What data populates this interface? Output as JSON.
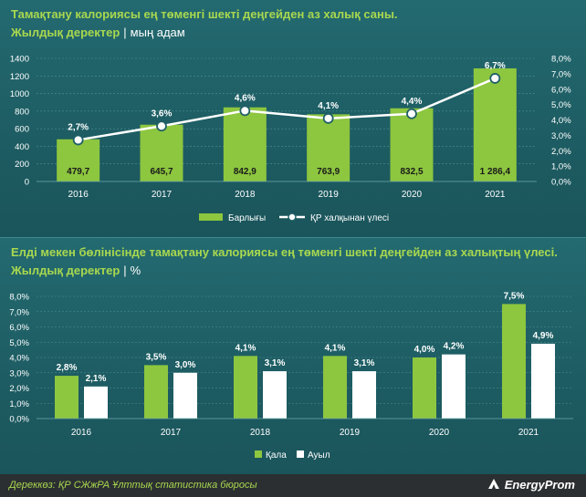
{
  "chart1": {
    "title": "Тамақтану калориясы ең төменгі шекті деңгейден аз халық саны.",
    "subtitle": "Жылдық деректер",
    "unit": "мың адам"
  },
  "chart2": {
    "title": "Елді мекен бөлінісінде тамақтану калориясы ең төменгі шекті деңгейден аз халықтың үлесі.",
    "subtitle": "Жылдық деректер",
    "unit": "%"
  },
  "footer": {
    "source": "Дереккөз: ҚР СЖжРА Ұлттық статистика бюросы",
    "logo": "EnergyProm"
  },
  "colors": {
    "green": "#8dc63f",
    "white": "#ffffff",
    "line": "#ffffff",
    "bg": "#1f5f66"
  },
  "chart_data": [
    {
      "type": "bar",
      "categories": [
        "2016",
        "2017",
        "2018",
        "2019",
        "2020",
        "2021"
      ],
      "series": [
        {
          "name": "Барлығы",
          "values": [
            479.7,
            645.7,
            842.9,
            763.9,
            832.5,
            1286.4
          ],
          "labels": [
            "479,7",
            "645,7",
            "842,9",
            "763,9",
            "832,5",
            "1 286,4"
          ]
        },
        {
          "name": "ҚР халқынан үлесі",
          "type": "line",
          "axis": "right",
          "values": [
            2.7,
            3.6,
            4.6,
            4.1,
            4.4,
            6.7
          ],
          "labels": [
            "2,7%",
            "3,6%",
            "4,6%",
            "4,1%",
            "4,4%",
            "6,7%"
          ]
        }
      ],
      "ylim": [
        0,
        1400
      ],
      "yticks": [
        0,
        200,
        400,
        600,
        800,
        1000,
        1200,
        1400
      ],
      "ytick_labels": [
        "0",
        "200",
        "400",
        "600",
        "800",
        "1000",
        "1200",
        "1400"
      ],
      "y2lim": [
        0,
        8
      ],
      "y2ticks": [
        0,
        1,
        2,
        3,
        4,
        5,
        6,
        7,
        8
      ],
      "y2tick_labels": [
        "0,0%",
        "1,0%",
        "2,0%",
        "3,0%",
        "4,0%",
        "5,0%",
        "6,0%",
        "7,0%",
        "8,0%"
      ],
      "grid": true,
      "legend": "bottom"
    },
    {
      "type": "bar",
      "categories": [
        "2016",
        "2017",
        "2018",
        "2019",
        "2020",
        "2021"
      ],
      "series": [
        {
          "name": "Қала",
          "values": [
            2.8,
            3.5,
            4.1,
            4.1,
            4.0,
            7.5
          ],
          "labels": [
            "2,8%",
            "3,5%",
            "4,1%",
            "4,1%",
            "4,0%",
            "7,5%"
          ]
        },
        {
          "name": "Ауыл",
          "values": [
            2.1,
            3.0,
            3.1,
            3.1,
            4.2,
            4.9
          ],
          "labels": [
            "2,1%",
            "3,0%",
            "3,1%",
            "3,1%",
            "4,2%",
            "4,9%"
          ]
        }
      ],
      "ylim": [
        0,
        8
      ],
      "yticks": [
        0,
        1,
        2,
        3,
        4,
        5,
        6,
        7,
        8
      ],
      "ytick_labels": [
        "0,0%",
        "1,0%",
        "2,0%",
        "3,0%",
        "4,0%",
        "5,0%",
        "6,0%",
        "7,0%",
        "8,0%"
      ],
      "grid": true,
      "legend": "bottom"
    }
  ]
}
